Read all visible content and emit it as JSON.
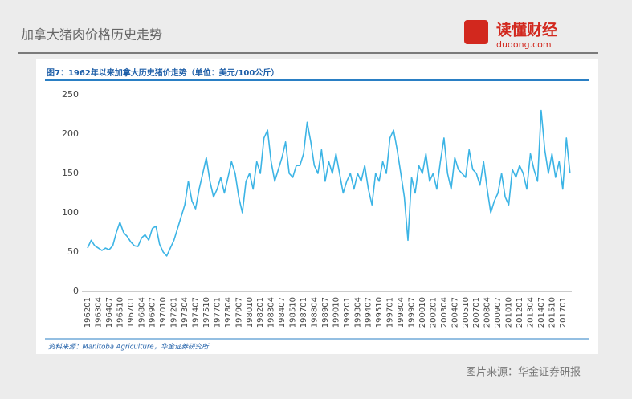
{
  "header": {
    "title": "加拿大猪肉价格历史走势",
    "logo": "读懂财经",
    "logo_site": "dudong.com"
  },
  "chart_data": {
    "type": "line",
    "title": "图7：1962年以来加拿大历史猪价走势（单位：美元/100公斤）",
    "source": "资料来源：Manitoba Agriculture，华金证券研究所",
    "color": "#3cb4e5",
    "ylim": [
      0,
      250
    ],
    "yticks": [
      0,
      50,
      100,
      150,
      200,
      250
    ],
    "categories": [
      "196201",
      null,
      null,
      "196304",
      null,
      null,
      "196407",
      null,
      null,
      "196510",
      null,
      null,
      "196701",
      null,
      null,
      "196804",
      null,
      null,
      "196907",
      null,
      null,
      "197010",
      null,
      null,
      "197201",
      null,
      null,
      "197304",
      null,
      null,
      "197407",
      null,
      null,
      "197510",
      null,
      null,
      "197701",
      null,
      null,
      "197804",
      null,
      null,
      "197907",
      null,
      null,
      "198010",
      null,
      null,
      "198201",
      null,
      null,
      "198304",
      null,
      null,
      "198407",
      null,
      null,
      "198510",
      null,
      null,
      "198701",
      null,
      null,
      "198804",
      null,
      null,
      "198907",
      null,
      null,
      "199010",
      null,
      null,
      "199201",
      null,
      null,
      "199304",
      null,
      null,
      "199407",
      null,
      null,
      "199510",
      null,
      null,
      "199701",
      null,
      null,
      "199804",
      null,
      null,
      "199907",
      null,
      null,
      "200010",
      null,
      null,
      "200201",
      null,
      null,
      "200304",
      null,
      null,
      "200407",
      null,
      null,
      "200510",
      null,
      null,
      "200701",
      null,
      null,
      "200804",
      null,
      null,
      "200907",
      null,
      null,
      "201010",
      null,
      null,
      "201201",
      null,
      null,
      "201304",
      null,
      null,
      "201407",
      null,
      null,
      "201510",
      null,
      null,
      "201701",
      null,
      null
    ],
    "values": [
      55,
      65,
      58,
      55,
      52,
      55,
      53,
      58,
      75,
      88,
      75,
      70,
      63,
      58,
      57,
      68,
      72,
      65,
      80,
      83,
      60,
      50,
      45,
      55,
      65,
      80,
      95,
      110,
      140,
      115,
      105,
      130,
      150,
      170,
      140,
      120,
      130,
      145,
      125,
      145,
      165,
      150,
      120,
      100,
      140,
      150,
      130,
      165,
      150,
      195,
      205,
      165,
      140,
      155,
      170,
      190,
      150,
      145,
      160,
      160,
      175,
      215,
      190,
      160,
      150,
      180,
      140,
      165,
      150,
      175,
      150,
      125,
      140,
      150,
      130,
      150,
      140,
      160,
      130,
      110,
      150,
      140,
      165,
      150,
      195,
      205,
      180,
      150,
      120,
      65,
      145,
      125,
      160,
      150,
      175,
      140,
      150,
      130,
      165,
      195,
      150,
      130,
      170,
      155,
      150,
      145,
      180,
      155,
      150,
      135,
      165,
      130,
      100,
      115,
      125,
      150,
      120,
      110,
      155,
      145,
      160,
      150,
      130,
      175,
      155,
      140,
      230,
      180,
      150,
      175,
      145,
      165,
      130,
      195,
      150
    ]
  },
  "footer": {
    "credit": "图片来源：华金证券研报"
  }
}
